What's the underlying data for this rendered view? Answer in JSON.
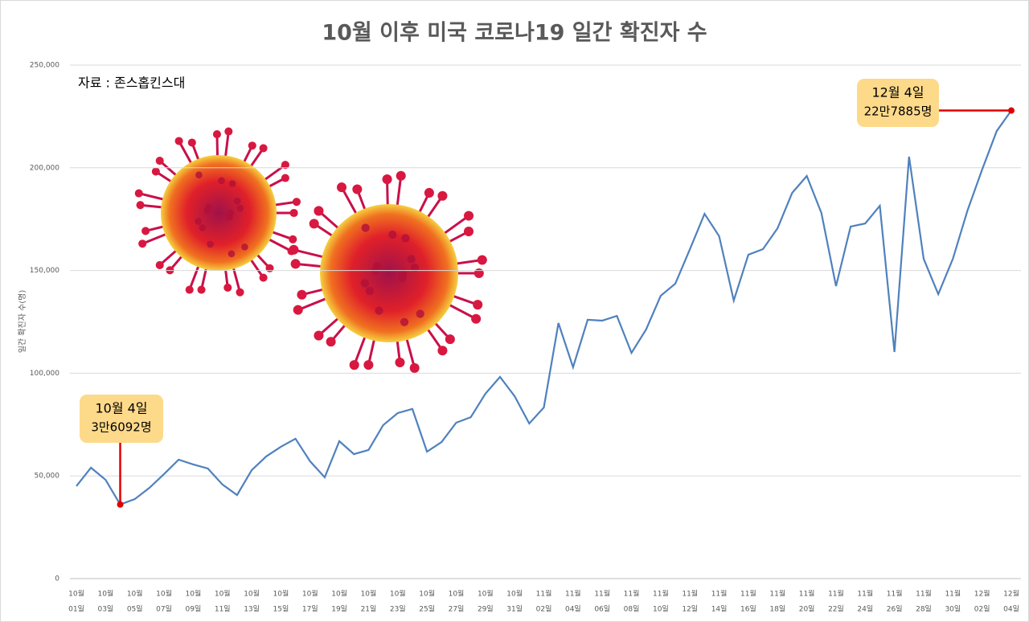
{
  "chart_data": {
    "type": "line",
    "title": "10월 이후 미국 코로나19 일간 확진자 수",
    "source": "자료 : 존스홉킨스대",
    "y_label": "일간 확진자 수(명)",
    "annotations": [
      {
        "lines": [
          "10월 4일",
          "3만6092명"
        ]
      },
      {
        "lines": [
          "12월 4일",
          "22만7885명"
        ]
      }
    ],
    "categories": [
      [
        "10월",
        "01일"
      ],
      null,
      [
        "10월",
        "03일"
      ],
      null,
      [
        "10월",
        "05일"
      ],
      null,
      [
        "10월",
        "07일"
      ],
      null,
      [
        "10월",
        "09일"
      ],
      null,
      [
        "10월",
        "11일"
      ],
      null,
      [
        "10월",
        "13일"
      ],
      null,
      [
        "10월",
        "15일"
      ],
      null,
      [
        "10월",
        "17일"
      ],
      null,
      [
        "10월",
        "19일"
      ],
      null,
      [
        "10월",
        "21일"
      ],
      null,
      [
        "10월",
        "23일"
      ],
      null,
      [
        "10월",
        "25일"
      ],
      null,
      [
        "10월",
        "27일"
      ],
      null,
      [
        "10월",
        "29일"
      ],
      null,
      [
        "10월",
        "31일"
      ],
      null,
      [
        "11월",
        "02일"
      ],
      null,
      [
        "11월",
        "04일"
      ],
      null,
      [
        "11월",
        "06일"
      ],
      null,
      [
        "11월",
        "08일"
      ],
      null,
      [
        "11월",
        "10일"
      ],
      null,
      [
        "11월",
        "12일"
      ],
      null,
      [
        "11월",
        "14일"
      ],
      null,
      [
        "11월",
        "16일"
      ],
      null,
      [
        "11월",
        "18일"
      ],
      null,
      [
        "11월",
        "20일"
      ],
      null,
      [
        "11월",
        "22일"
      ],
      null,
      [
        "11월",
        "24일"
      ],
      null,
      [
        "11월",
        "26일"
      ],
      null,
      [
        "11월",
        "28일"
      ],
      null,
      [
        "11월",
        "30일"
      ],
      null,
      [
        "12월",
        "02일"
      ],
      null,
      [
        "12월",
        "04일"
      ]
    ],
    "series": [
      {
        "name": "일간 확진자 수",
        "color": "#4f81bd",
        "values": [
          45000,
          54000,
          48100,
          36092,
          38700,
          44200,
          50900,
          57900,
          55600,
          53600,
          45800,
          40700,
          52800,
          59500,
          64200,
          68100,
          57100,
          49300,
          66900,
          60600,
          62600,
          74700,
          80600,
          82600,
          61800,
          66500,
          75900,
          78600,
          90000,
          98200,
          88800,
          75500,
          83300,
          124400,
          102900,
          126000,
          125600,
          127900,
          109900,
          121300,
          137700,
          143600,
          160400,
          177600,
          166700,
          135400,
          157700,
          160400,
          170600,
          187800,
          196000,
          178000,
          142400,
          171400,
          172900,
          181500,
          110300,
          205400,
          155700,
          138500,
          155700,
          179200,
          199100,
          217900,
          227885
        ]
      }
    ],
    "ylim": [
      0,
      250000
    ],
    "yticks": [
      0,
      {
        "value": 50000,
        "label": "50,000"
      },
      {
        "value": 100000,
        "label": "100,000"
      },
      {
        "value": 150000,
        "label": "150,000"
      },
      {
        "value": 200000,
        "label": "200,000"
      },
      {
        "value": 250000,
        "label": "250,000"
      }
    ],
    "grid": true,
    "highlight_color": "#e00000"
  }
}
